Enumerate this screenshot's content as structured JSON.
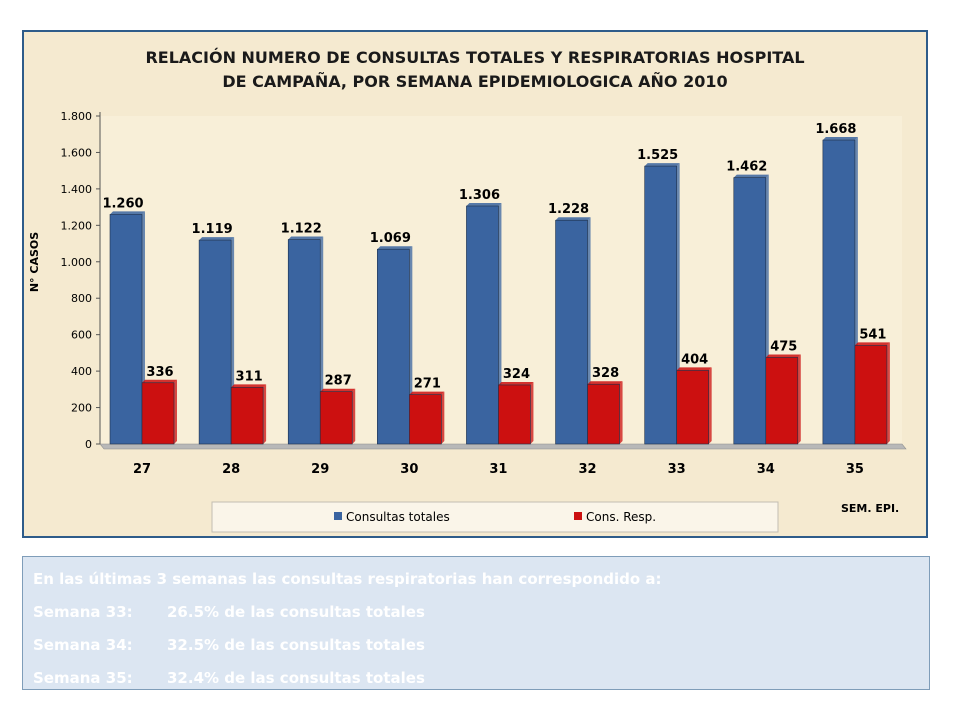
{
  "chart_data": {
    "type": "bar",
    "title_lines": [
      "RELACIÓN NUMERO DE CONSULTAS TOTALES Y RESPIRATORIAS HOSPITAL",
      "DE CAMPAÑA, POR SEMANA EPIDEMIOLOGICA AÑO 2010"
    ],
    "ylabel": "N° CASOS",
    "xlabel": "SEM. EPI.",
    "ylim": [
      0,
      1800
    ],
    "y_ticks": [
      0,
      200,
      400,
      600,
      800,
      1000,
      1200,
      1400,
      1600,
      1800
    ],
    "y_tick_labels": [
      "0",
      "200",
      "400",
      "600",
      "800",
      "1.000",
      "1.200",
      "1.400",
      "1.600",
      "1.800"
    ],
    "grid": false,
    "legend_position": "bottom",
    "categories": [
      "27",
      "28",
      "29",
      "30",
      "31",
      "32",
      "33",
      "34",
      "35"
    ],
    "series": [
      {
        "name": "Consultas totales",
        "color": "#3a64a0",
        "values": [
          1260,
          1119,
          1122,
          1069,
          1306,
          1228,
          1525,
          1462,
          1668
        ],
        "labels": [
          "1.260",
          "1.119",
          "1.122",
          "1.069",
          "1.306",
          "1.228",
          "1.525",
          "1.462",
          "1.668"
        ]
      },
      {
        "name": "Cons. Resp.",
        "color": "#cc1010",
        "values": [
          336,
          311,
          287,
          271,
          324,
          328,
          404,
          475,
          541
        ],
        "labels": [
          "336",
          "311",
          "287",
          "271",
          "324",
          "328",
          "404",
          "475",
          "541"
        ]
      }
    ]
  },
  "notes": {
    "intro": "En las últimas 3 semanas las consultas respiratorias han correspondido a:",
    "rows": [
      {
        "week": "Semana 33:",
        "text": "26.5%  de las consultas totales"
      },
      {
        "week": "Semana 34:",
        "text": "32.5% de las consultas totales"
      },
      {
        "week": "Semana 35:",
        "text": "32.4% de las consultas totales"
      }
    ]
  }
}
